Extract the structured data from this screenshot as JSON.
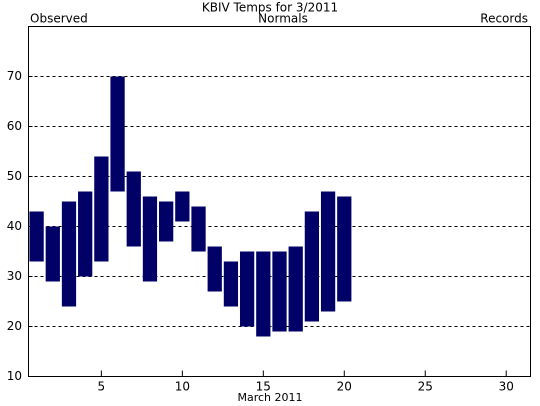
{
  "chart_data": {
    "type": "range_bar",
    "title": "KBIV Temps for 3/2011",
    "xlabel": "March 2011",
    "legend": [
      {
        "label": "Observed",
        "color": "#000066"
      },
      {
        "label": "Normals",
        "color": "#006600"
      },
      {
        "label": "Records",
        "color": "#b088d8"
      }
    ],
    "x": [
      1,
      2,
      3,
      4,
      5,
      6,
      7,
      8,
      9,
      10,
      11,
      12,
      13,
      14,
      15,
      16,
      17,
      18,
      19,
      20
    ],
    "highs": [
      43,
      40,
      45,
      47,
      54,
      70,
      51,
      46,
      45,
      47,
      44,
      36,
      33,
      35,
      35,
      35,
      36,
      43,
      47,
      46
    ],
    "lows": [
      33,
      29,
      24,
      30,
      33,
      47,
      36,
      29,
      37,
      41,
      35,
      27,
      24,
      20,
      18,
      19,
      19,
      21,
      23,
      25
    ],
    "color": "#000066",
    "xlim": [
      0.5,
      31.5
    ],
    "xticks": [
      5,
      10,
      15,
      20,
      25,
      30
    ],
    "ylim": [
      10,
      80
    ],
    "yticks": [
      10,
      20,
      30,
      40,
      50,
      60,
      70
    ],
    "grid": true
  }
}
